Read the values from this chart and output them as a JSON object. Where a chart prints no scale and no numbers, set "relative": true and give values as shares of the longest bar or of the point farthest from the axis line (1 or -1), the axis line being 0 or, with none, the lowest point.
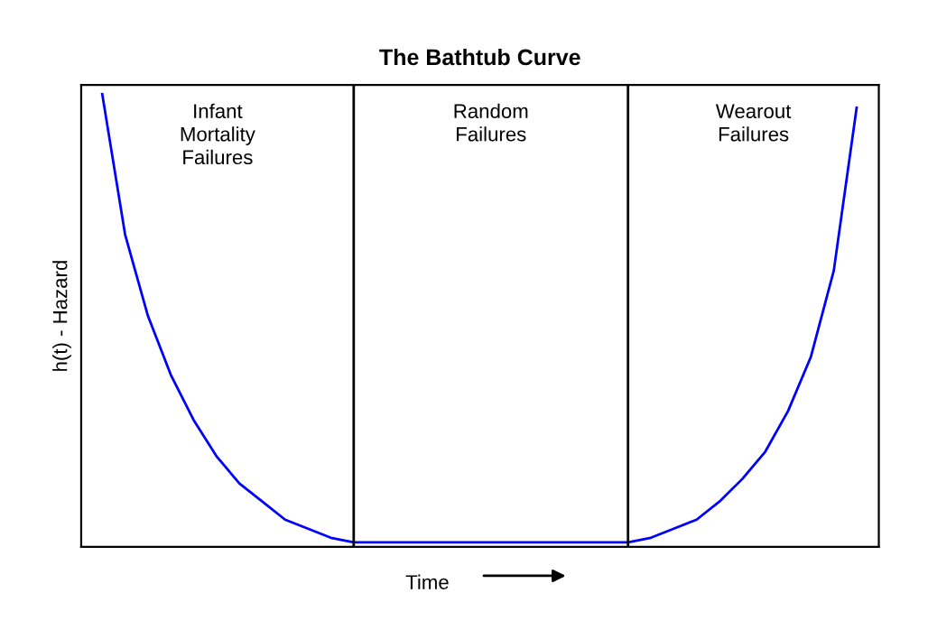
{
  "chart_data": {
    "type": "line",
    "title": "The Bathtub Curve",
    "xlabel": "Time",
    "ylabel": "h(t) - Hazard",
    "relative": true,
    "categories": [
      null,
      null,
      null,
      null,
      null,
      null,
      null,
      null,
      null,
      null,
      null,
      null,
      null,
      null,
      null,
      null,
      null,
      null,
      null,
      null,
      null,
      null,
      null,
      null,
      null,
      null,
      null,
      null,
      null,
      null,
      null,
      null,
      null,
      null
    ],
    "series": [
      {
        "color": "#0000ff",
        "values": [
          1.0,
          0.69,
          0.51,
          0.38,
          0.28,
          0.2,
          0.14,
          0.1,
          0.06,
          0.04,
          0.02,
          0.01,
          0.01,
          0.01,
          0.01,
          0.01,
          0.01,
          0.01,
          0.01,
          0.01,
          0.01,
          0.01,
          0.01,
          0.01,
          0.02,
          0.04,
          0.06,
          0.1,
          0.15,
          0.21,
          0.3,
          0.42,
          0.61,
          0.97
        ]
      }
    ],
    "annotations": [
      "Infant\nMortality\nFailures",
      "Random\nFailures",
      "Wearout\nFailures"
    ],
    "grid": false,
    "marker": "none",
    "line_style": "solid"
  }
}
